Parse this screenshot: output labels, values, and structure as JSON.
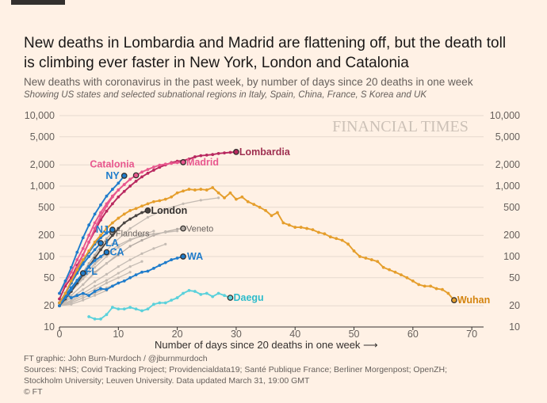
{
  "header": {
    "title_line1": "New deaths in Lombardia and Madrid are flattening off, but the death toll",
    "title_line2": "is climbing ever faster in New York, London and Catalonia",
    "subtitle": "New deaths with coronavirus in the past week, by number of days since 20 deaths in one week",
    "note": "Showing US states and selected subnational regions in Italy, Spain, China, France, S Korea and UK"
  },
  "watermark": "FINANCIAL TIMES",
  "footer": {
    "line1": "FT graphic: John Burn-Murdoch / @jburnmurdoch",
    "line2": "Sources: NHS; Covid Tracking Project; Providencialdata19; Santé Publique France; Berliner Morgenpost; OpenZH;",
    "line3": "Stockholm University; Leuven University. Data updated March 31, 19:00 GMT",
    "line4": "© FT"
  },
  "chart_data": {
    "type": "line",
    "title": "New deaths with coronavirus in the past week",
    "xlabel": "Number of days since 20 deaths in one week",
    "ylabel": "",
    "yscale": "log",
    "xlim": [
      0,
      72
    ],
    "ylim": [
      10,
      10000
    ],
    "xticks": [
      0,
      10,
      20,
      30,
      40,
      50,
      60,
      70
    ],
    "yticks": [
      10,
      20,
      50,
      100,
      200,
      500,
      1000,
      2000,
      5000,
      10000
    ],
    "ytick_labels": [
      "10",
      "20",
      "50",
      "100",
      "200",
      "500",
      "1,000",
      "2,000",
      "5,000",
      "10,000"
    ],
    "xlabel_arrow": "⟶",
    "series": [
      {
        "name": "Lombardia",
        "label": "Lombardia",
        "color": "#b8285f",
        "labelColor": "#9e2f50",
        "bold": true,
        "endpoint": true,
        "x": [
          0,
          1,
          2,
          3,
          4,
          5,
          6,
          7,
          8,
          9,
          10,
          11,
          12,
          13,
          14,
          15,
          16,
          17,
          18,
          19,
          20,
          21,
          22,
          23,
          24,
          25,
          26,
          27,
          28,
          29,
          30
        ],
        "y": [
          25,
          38,
          50,
          75,
          105,
          160,
          230,
          330,
          440,
          560,
          700,
          840,
          1000,
          1170,
          1350,
          1520,
          1680,
          1850,
          2000,
          2150,
          2250,
          2300,
          2420,
          2600,
          2700,
          2750,
          2800,
          2900,
          2950,
          3000,
          3050
        ]
      },
      {
        "name": "Madrid",
        "label": "Madrid",
        "color": "#e8578e",
        "labelColor": "#e8578e",
        "bold": true,
        "endpoint": true,
        "x": [
          0,
          1,
          2,
          3,
          4,
          5,
          6,
          7,
          8,
          9,
          10,
          11,
          12,
          13,
          14,
          15,
          16,
          17,
          18,
          19,
          20,
          21
        ],
        "y": [
          30,
          42,
          60,
          90,
          130,
          200,
          300,
          420,
          560,
          720,
          880,
          1050,
          1250,
          1420,
          1580,
          1720,
          1860,
          1980,
          2050,
          2100,
          2150,
          2180
        ]
      },
      {
        "name": "Catalonia",
        "label": "Catalonia",
        "color": "#e8578e",
        "labelColor": "#e8578e",
        "bold": true,
        "endpoint": true,
        "x": [
          0,
          1,
          2,
          3,
          4,
          5,
          6,
          7,
          8,
          9,
          10,
          11,
          12,
          13
        ],
        "y": [
          22,
          30,
          45,
          70,
          105,
          160,
          250,
          370,
          520,
          700,
          880,
          1050,
          1250,
          1420
        ]
      },
      {
        "name": "NY",
        "label": "NY",
        "color": "#1f7ccb",
        "labelColor": "#1f7ccb",
        "bold": true,
        "endpoint": true,
        "x": [
          0,
          1,
          2,
          3,
          4,
          5,
          6,
          7,
          8,
          9,
          10,
          11
        ],
        "y": [
          30,
          45,
          70,
          115,
          185,
          280,
          400,
          540,
          720,
          900,
          1100,
          1400
        ]
      },
      {
        "name": "London",
        "label": "London",
        "color": "#4a4542",
        "labelColor": "#33302e",
        "bold": true,
        "endpoint": true,
        "x": [
          0,
          1,
          2,
          3,
          4,
          5,
          6,
          7,
          8,
          9,
          10,
          11,
          12,
          13,
          14,
          15
        ],
        "y": [
          20,
          25,
          32,
          42,
          55,
          72,
          95,
          125,
          160,
          200,
          250,
          300,
          340,
          380,
          420,
          450
        ]
      },
      {
        "name": "NJ",
        "label": "NJ",
        "color": "#1f7ccb",
        "labelColor": "#1f7ccb",
        "bold": true,
        "endpoint": true,
        "x": [
          0,
          1,
          2,
          3,
          4,
          5,
          6,
          7,
          8,
          9
        ],
        "y": [
          22,
          30,
          42,
          60,
          85,
          115,
          150,
          185,
          215,
          240
        ]
      },
      {
        "name": "LA",
        "label": "LA",
        "color": "#1f7ccb",
        "labelColor": "#1f7ccb",
        "bold": true,
        "endpoint": true,
        "x": [
          0,
          1,
          2,
          3,
          4,
          5,
          6,
          7
        ],
        "y": [
          22,
          30,
          42,
          58,
          78,
          100,
          125,
          155
        ]
      },
      {
        "name": "CA",
        "label": "CA",
        "color": "#1f7ccb",
        "labelColor": "#1f7ccb",
        "bold": true,
        "endpoint": true,
        "x": [
          0,
          1,
          2,
          3,
          4,
          5,
          6,
          7,
          8
        ],
        "y": [
          22,
          28,
          36,
          46,
          58,
          72,
          88,
          100,
          115
        ]
      },
      {
        "name": "FL",
        "label": "FL",
        "color": "#1f7ccb",
        "labelColor": "#1f7ccb",
        "bold": true,
        "endpoint": true,
        "x": [
          0,
          1,
          2,
          3,
          4
        ],
        "y": [
          20,
          26,
          34,
          45,
          58
        ]
      },
      {
        "name": "WA",
        "label": "WA",
        "color": "#1f7ccb",
        "labelColor": "#1f7ccb",
        "bold": true,
        "endpoint": true,
        "x": [
          0,
          1,
          2,
          3,
          4,
          5,
          6,
          7,
          8,
          9,
          10,
          11,
          12,
          13,
          14,
          15,
          16,
          17,
          18,
          19,
          20,
          21
        ],
        "y": [
          22,
          30,
          26,
          28,
          30,
          28,
          32,
          35,
          34,
          38,
          42,
          45,
          50,
          55,
          60,
          62,
          68,
          75,
          82,
          90,
          95,
          100
        ]
      },
      {
        "name": "Flanders",
        "label": "Flanders",
        "color": "#b3aaa3",
        "labelColor": "#66605c",
        "bold": false,
        "endpoint": true,
        "x": [
          0,
          1,
          2,
          3,
          4,
          5,
          6,
          7,
          8,
          9
        ],
        "y": [
          20,
          26,
          34,
          45,
          60,
          80,
          105,
          140,
          180,
          220
        ]
      },
      {
        "name": "Veneto",
        "label": "Veneto",
        "color": "#b3aaa3",
        "labelColor": "#66605c",
        "bold": false,
        "endpoint": true,
        "x": [
          0,
          2,
          4,
          6,
          8,
          10,
          12,
          14,
          16,
          18,
          20,
          21
        ],
        "y": [
          20,
          28,
          40,
          60,
          80,
          105,
          140,
          170,
          200,
          225,
          245,
          250
        ]
      },
      {
        "name": "Daegu",
        "label": "Daegu",
        "color": "#5bd1db",
        "labelColor": "#2ebccb",
        "bold": true,
        "endpoint": true,
        "x": [
          5,
          6,
          7,
          8,
          9,
          10,
          11,
          12,
          13,
          14,
          15,
          16,
          17,
          18,
          19,
          20,
          21,
          22,
          23,
          24,
          25,
          26,
          27,
          28,
          29
        ],
        "y": [
          14,
          13,
          13,
          15,
          19,
          18,
          18,
          19,
          18,
          17,
          18,
          21,
          22,
          22,
          24,
          26,
          30,
          33,
          32,
          29,
          30,
          27,
          30,
          28,
          26
        ]
      },
      {
        "name": "Wuhan",
        "label": "Wuhan",
        "color": "#e59e2c",
        "labelColor": "#d4840f",
        "bold": true,
        "endpoint": true,
        "x": [
          0,
          1,
          2,
          3,
          4,
          5,
          6,
          7,
          8,
          9,
          10,
          11,
          12,
          13,
          14,
          15,
          16,
          17,
          18,
          19,
          20,
          21,
          22,
          23,
          24,
          25,
          26,
          27,
          28,
          29,
          30,
          31,
          32,
          33,
          34,
          35,
          36,
          37,
          38,
          39,
          40,
          41,
          42,
          43,
          44,
          45,
          46,
          47,
          48,
          49,
          50,
          51,
          52,
          53,
          54,
          55,
          56,
          57,
          58,
          59,
          60,
          61,
          62,
          63,
          64,
          65,
          66,
          67
        ],
        "y": [
          22,
          30,
          45,
          65,
          90,
          120,
          160,
          200,
          250,
          300,
          350,
          400,
          450,
          480,
          520,
          560,
          600,
          620,
          650,
          700,
          800,
          850,
          900,
          880,
          900,
          880,
          950,
          800,
          680,
          800,
          650,
          700,
          600,
          550,
          500,
          450,
          380,
          420,
          300,
          280,
          260,
          260,
          250,
          240,
          220,
          210,
          190,
          180,
          170,
          150,
          120,
          100,
          95,
          90,
          85,
          70,
          65,
          60,
          55,
          50,
          45,
          40,
          38,
          38,
          35,
          34,
          30,
          24
        ]
      },
      {
        "name": "grey-1",
        "color": "#c4bbb3",
        "bold": false,
        "endpoint": false,
        "x": [
          0,
          3,
          6,
          9,
          12,
          15,
          18,
          21,
          24,
          27
        ],
        "y": [
          22,
          40,
          80,
          150,
          250,
          360,
          470,
          560,
          630,
          680
        ]
      },
      {
        "name": "grey-2",
        "color": "#c4bbb3",
        "bold": false,
        "endpoint": false,
        "x": [
          0,
          2,
          4,
          6,
          8,
          10,
          12,
          14,
          16
        ],
        "y": [
          22,
          32,
          48,
          70,
          100,
          135,
          170,
          200,
          230
        ]
      },
      {
        "name": "grey-3",
        "color": "#c4bbb3",
        "bold": false,
        "endpoint": false,
        "x": [
          0,
          2,
          4,
          6,
          8,
          10,
          12,
          14,
          16,
          18
        ],
        "y": [
          20,
          26,
          34,
          44,
          56,
          72,
          90,
          110,
          130,
          150
        ]
      },
      {
        "name": "grey-4",
        "color": "#c4bbb3",
        "bold": false,
        "endpoint": false,
        "x": [
          0,
          2,
          4,
          6,
          8,
          10,
          12,
          14
        ],
        "y": [
          20,
          24,
          30,
          38,
          46,
          58,
          72,
          85
        ]
      },
      {
        "name": "grey-5",
        "color": "#c4bbb3",
        "bold": false,
        "endpoint": false,
        "x": [
          0,
          2,
          4,
          6,
          8,
          10,
          12
        ],
        "y": [
          20,
          23,
          28,
          34,
          42,
          50,
          60
        ]
      },
      {
        "name": "grey-6",
        "color": "#c4bbb3",
        "bold": false,
        "endpoint": false,
        "x": [
          0,
          2,
          4,
          6,
          8,
          10
        ],
        "y": [
          20,
          22,
          26,
          30,
          36,
          42
        ]
      },
      {
        "name": "grey-7",
        "color": "#c4bbb3",
        "bold": false,
        "endpoint": false,
        "x": [
          0,
          2,
          4,
          6,
          8
        ],
        "y": [
          20,
          21,
          24,
          28,
          33
        ]
      },
      {
        "name": "grey-8",
        "color": "#c4bbb3",
        "bold": false,
        "endpoint": false,
        "x": [
          0,
          2,
          4,
          6,
          8,
          10,
          12,
          14,
          16,
          18,
          20
        ],
        "y": [
          22,
          34,
          52,
          78,
          110,
          145,
          175,
          195,
          210,
          220,
          230
        ]
      },
      {
        "name": "grey-9",
        "color": "#c4bbb3",
        "bold": false,
        "endpoint": false,
        "x": [
          0,
          2,
          4,
          6,
          8,
          10
        ],
        "y": [
          20,
          28,
          40,
          58,
          80,
          110
        ]
      }
    ]
  }
}
